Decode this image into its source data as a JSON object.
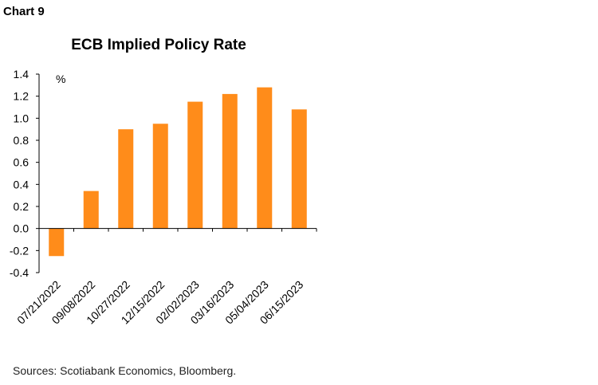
{
  "header": {
    "chart_label": "Chart 9"
  },
  "footer": {
    "source": "Sources: Scotiabank Economics, Bloomberg."
  },
  "colors": {
    "bar": "#FF8C1A",
    "axis": "#000000",
    "text": "#000000"
  },
  "chart_data": {
    "type": "bar",
    "title": "ECB Implied Policy Rate",
    "unit_label": "%",
    "xlabel": "",
    "ylabel": "",
    "categories": [
      "07/21/2022",
      "09/08/2022",
      "10/27/2022",
      "12/15/2022",
      "02/02/2023",
      "03/16/2023",
      "05/04/2023",
      "06/15/2023"
    ],
    "values": [
      -0.25,
      0.34,
      0.9,
      0.95,
      1.15,
      1.22,
      1.28,
      1.08
    ],
    "ylim": [
      -0.4,
      1.4
    ],
    "yticks": [
      "1.4",
      "1.2",
      "1.0",
      "0.8",
      "0.6",
      "0.4",
      "0.2",
      "0.0",
      "-0.2",
      "-0.4"
    ],
    "grid": false,
    "legend": "none"
  }
}
